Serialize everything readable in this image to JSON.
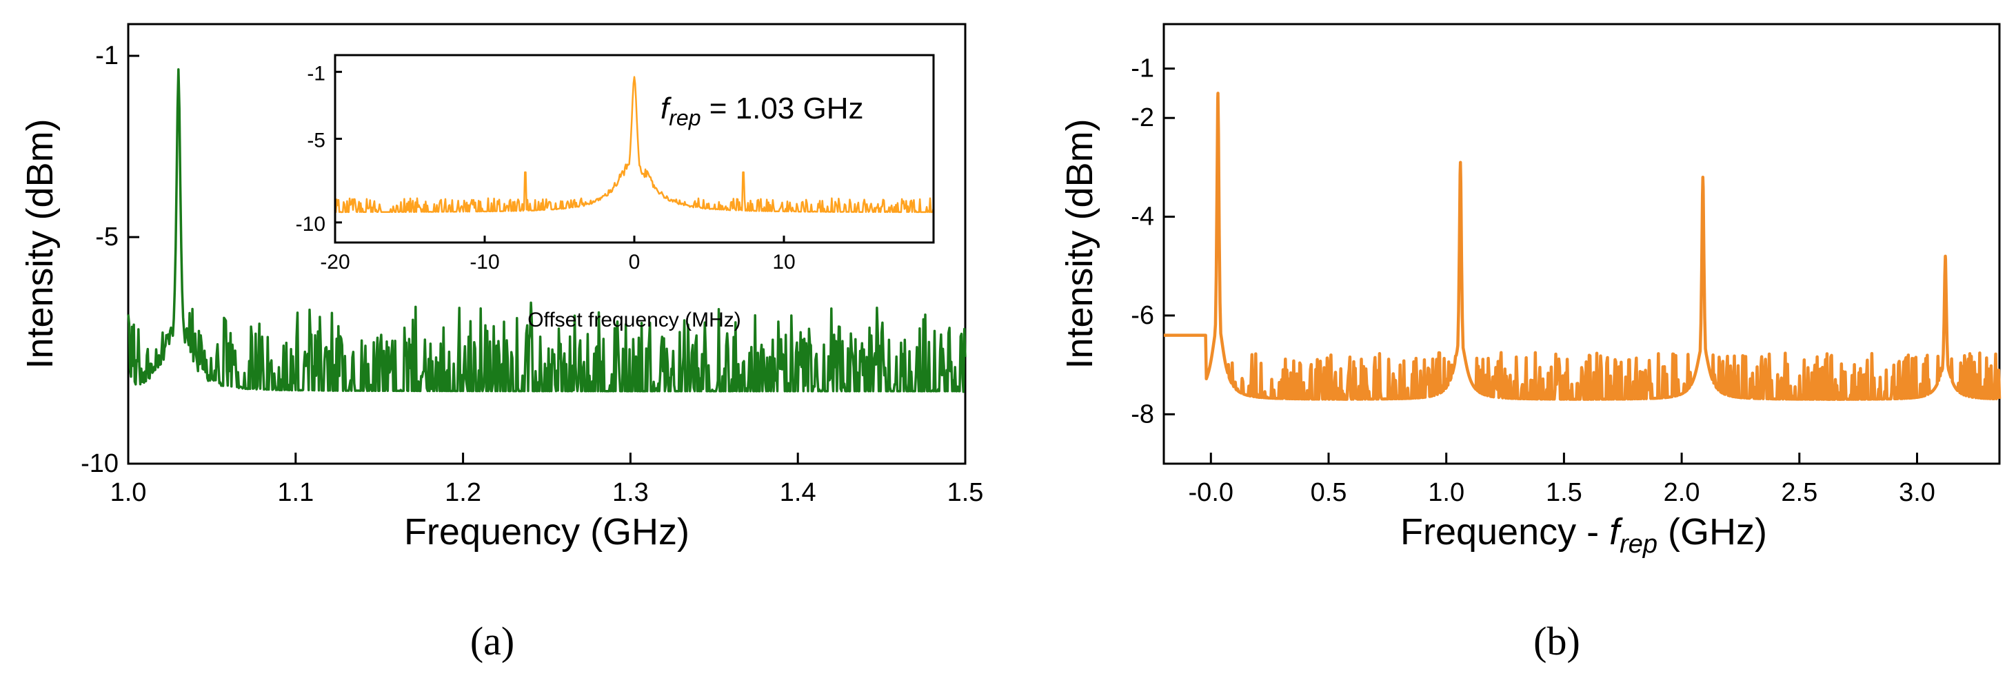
{
  "chart_data": [
    {
      "panel_label": "(a)",
      "type": "line",
      "xlabel": "Frequency (GHz)",
      "ylabel": "Intensity (dBm)",
      "xlim": [
        1.0,
        1.5
      ],
      "ylim": [
        -10,
        -0.3
      ],
      "xticks": [
        1.0,
        1.1,
        1.2,
        1.3,
        1.4,
        1.5
      ],
      "xtick_labels": [
        "1.0",
        "1.1",
        "1.2",
        "1.3",
        "1.4",
        "1.5"
      ],
      "yticks": [
        -10,
        -5,
        -1
      ],
      "ytick_labels": [
        "-10",
        "-5",
        "-1"
      ],
      "color": "#1a7a1a",
      "series": [
        {
          "peak_x": 1.03,
          "peak_y": -1.3,
          "noise_floor": -8.4,
          "x": [
            1.0,
            1.01,
            1.02,
            1.025,
            1.028,
            1.03,
            1.032,
            1.035,
            1.04,
            1.05,
            1.1,
            1.2,
            1.3,
            1.4,
            1.5
          ],
          "y": [
            -7.8,
            -8.3,
            -7.9,
            -6.8,
            -5.0,
            -1.3,
            -5.0,
            -6.6,
            -7.6,
            -8.4,
            -8.4,
            -8.3,
            -8.4,
            -8.4,
            -7.6
          ]
        }
      ],
      "inset": {
        "type": "line",
        "xlabel": "Offset frequency (MHz)",
        "xlim": [
          -20,
          20
        ],
        "ylim": [
          -11.2,
          0
        ],
        "xticks": [
          -20,
          -10,
          0,
          10
        ],
        "xtick_labels": [
          "-20",
          "-10",
          "0",
          "10"
        ],
        "yticks": [
          -10,
          -5,
          -1
        ],
        "ytick_labels": [
          "-10",
          "-5",
          "-1"
        ],
        "color": "#ffa21f",
        "annotation_base": "f",
        "annotation_sub": "rep",
        "annotation_rest": " = 1.03 GHz",
        "series": [
          {
            "peak_x": 0,
            "peak_y": -1.3,
            "side_peaks_x": [
              -7.3,
              7.3
            ],
            "side_peaks_y": [
              -7.0,
              -7.0
            ],
            "noise_floor": -9.4
          }
        ]
      }
    },
    {
      "panel_label": "(b)",
      "type": "line",
      "xlabel_base": "Frequency - ",
      "xlabel_italic_base": "f",
      "xlabel_sub": "rep",
      "xlabel_rest": " (GHz)",
      "ylabel": "Intensity (dBm)",
      "xlim": [
        -0.2,
        3.35
      ],
      "ylim": [
        -9,
        -0.1
      ],
      "xticks": [
        0.0,
        0.5,
        1.0,
        1.5,
        2.0,
        2.5,
        3.0
      ],
      "xtick_labels": [
        "-0.0",
        "0.5",
        "1.0",
        "1.5",
        "2.0",
        "2.5",
        "3.0"
      ],
      "yticks": [
        -8,
        -6,
        -4,
        -2,
        -1
      ],
      "ytick_labels": [
        "-8",
        "-6",
        "-4",
        "-2",
        "-1"
      ],
      "color": "#f08c28",
      "series": [
        {
          "peaks_x": [
            0.03,
            1.06,
            2.09,
            3.12
          ],
          "peaks_y": [
            -1.5,
            -2.9,
            -3.2,
            -4.8
          ],
          "noise_floor": -7.7,
          "start_level": -6.4
        }
      ]
    }
  ]
}
